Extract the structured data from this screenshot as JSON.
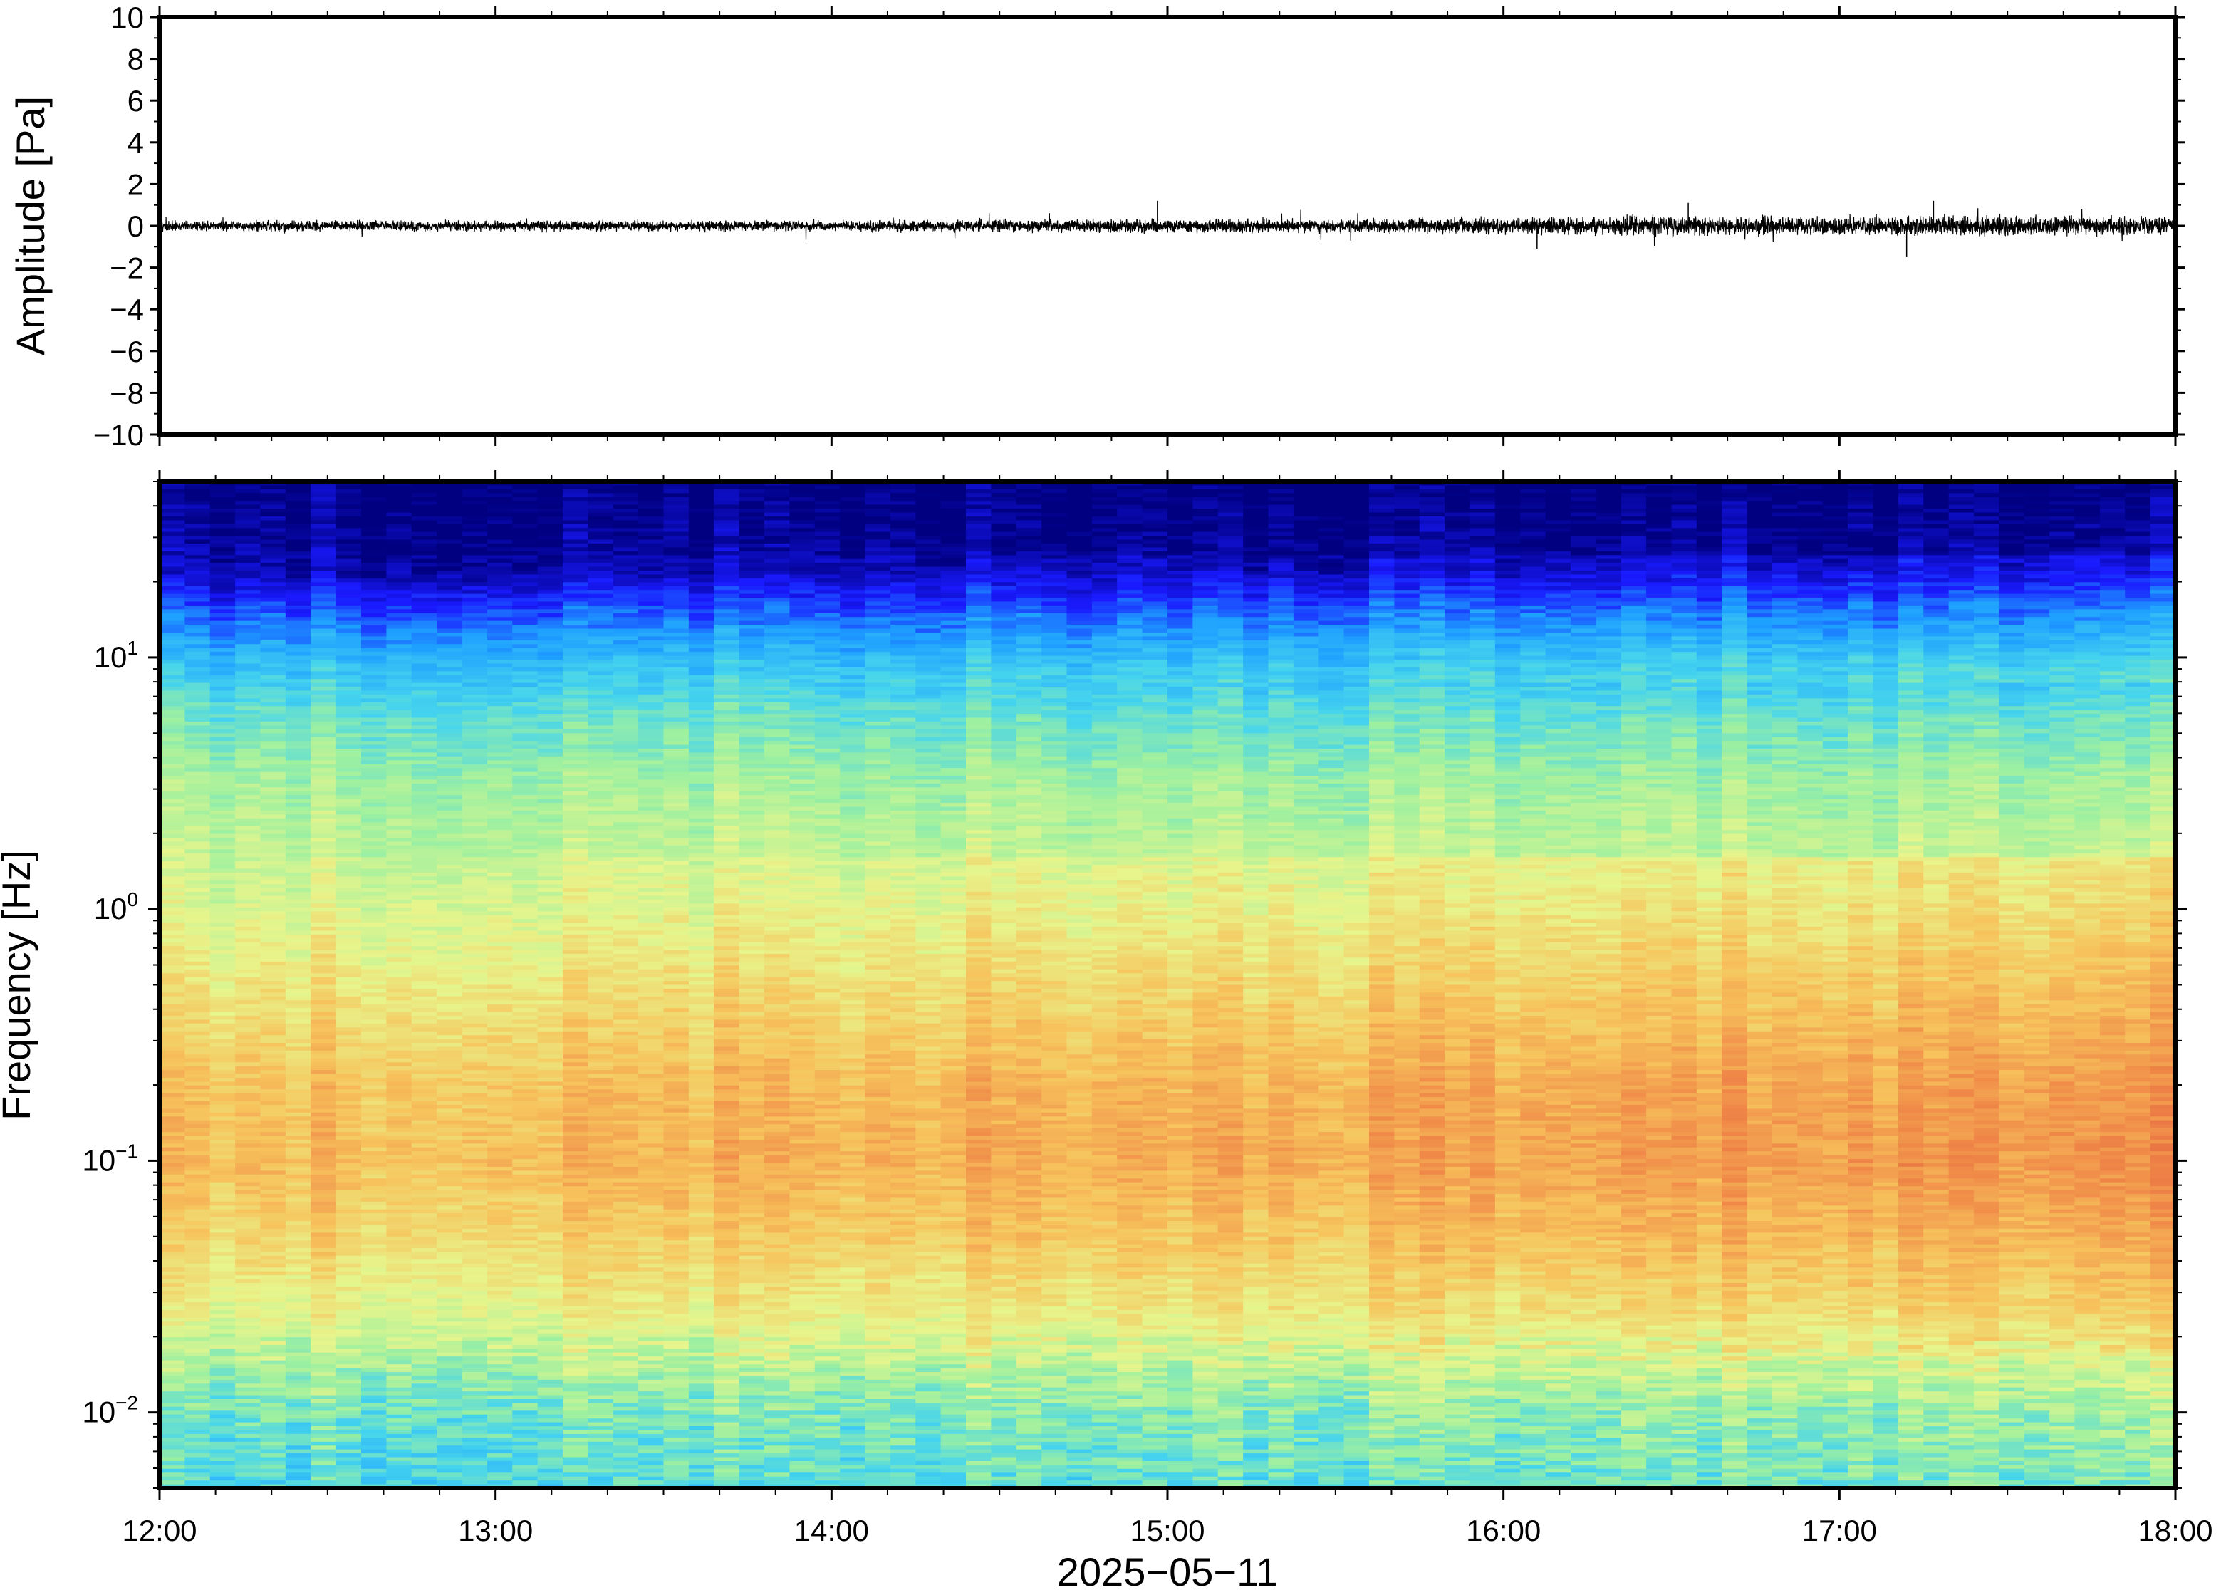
{
  "chart_data": [
    {
      "type": "line",
      "panel": "waveform",
      "ylabel": "Amplitude [Pa]",
      "ylim": [
        -10,
        10
      ],
      "yticks": [
        10,
        8,
        6,
        4,
        2,
        0,
        -2,
        -4,
        -6,
        -8,
        -10
      ],
      "ytick_labels": [
        "10",
        "8",
        "6",
        "4",
        "2",
        "0",
        "−2",
        "−4",
        "−6",
        "−8",
        "−10"
      ],
      "xlim_hours": [
        12,
        18
      ],
      "series": [
        {
          "color": "#000000",
          "x_hours": [
            12.0,
            12.5,
            13.0,
            13.5,
            14.0,
            14.5,
            15.0,
            15.5,
            16.0,
            16.5,
            17.0,
            17.5,
            18.0
          ],
          "envelope_pa": [
            0.35,
            0.35,
            0.35,
            0.35,
            0.35,
            0.4,
            0.45,
            0.45,
            0.55,
            0.65,
            0.6,
            0.65,
            0.6
          ],
          "peaks": [
            {
              "x_hours": 14.97,
              "y": 1.2
            },
            {
              "x_hours": 16.55,
              "y": 1.1
            },
            {
              "x_hours": 17.28,
              "y": 1.2
            },
            {
              "x_hours": 17.2,
              "y": -1.5
            },
            {
              "x_hours": 16.1,
              "y": -1.1
            }
          ]
        }
      ]
    },
    {
      "type": "heatmap",
      "panel": "spectrogram",
      "ylabel": "Frequency [Hz]",
      "yscale": "log",
      "ylim": [
        0.005,
        50
      ],
      "yticks": [
        {
          "base": "10",
          "exp": "1",
          "value": 10
        },
        {
          "base": "10",
          "exp": "0",
          "value": 1
        },
        {
          "base": "10",
          "exp": "−1",
          "value": 0.1
        },
        {
          "base": "10",
          "exp": "−2",
          "value": 0.01
        }
      ],
      "xlim_hours": [
        12,
        18
      ],
      "colormap": "jet",
      "colors": [
        "#000080",
        "#1a1aff",
        "#1ea0ff",
        "#45d4ee",
        "#9df0a0",
        "#e7f58c",
        "#f7c35c",
        "#f08a48",
        "#e05a3e"
      ]
    }
  ],
  "x_axis": {
    "ticks": [
      "12:00",
      "13:00",
      "14:00",
      "15:00",
      "16:00",
      "17:00",
      "18:00"
    ],
    "date_label": "2025−05−11"
  }
}
